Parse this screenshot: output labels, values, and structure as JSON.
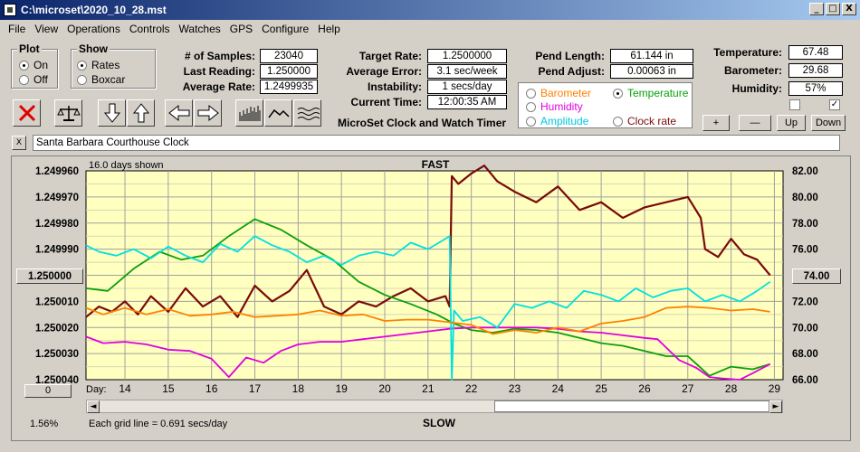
{
  "window": {
    "title": "C:\\microset\\2020_10_28.mst",
    "min": "_",
    "max": "□",
    "close": "X"
  },
  "menu": [
    "File",
    "View",
    "Operations",
    "Controls",
    "Watches",
    "GPS",
    "Configure",
    "Help"
  ],
  "plot": {
    "title": "Plot",
    "on": "On",
    "off": "Off",
    "selected": "On"
  },
  "show": {
    "title": "Show",
    "rates": "Rates",
    "boxcar": "Boxcar",
    "selected": "Rates"
  },
  "stats": {
    "samples_label": "# of Samples:",
    "samples": "23040",
    "last_label": "Last Reading:",
    "last": "1.250000",
    "avg_label": "Average Rate:",
    "avg": "1.2499935"
  },
  "rates": {
    "target_label": "Target Rate:",
    "target": "1.2500000",
    "error_label": "Average Error:",
    "error": "3.1 sec/week",
    "instab_label": "Instability:",
    "instab": "1 secs/day",
    "time_label": "Current Time:",
    "time": "12:00:35 AM"
  },
  "app_name": "MicroSet Clock and Watch Timer",
  "pend": {
    "length_label": "Pend Length:",
    "length": "61.144 in",
    "adjust_label": "Pend Adjust:",
    "adjust": "0.00063 in"
  },
  "sensor_options": {
    "barometer": "Barometer",
    "temperature": "Temperature",
    "humidity": "Humidity",
    "amplitude": "Amplitude",
    "clock_rate": "Clock rate",
    "selected": "Temperature"
  },
  "env": {
    "temp_label": "Temperature:",
    "temp": "67.48",
    "baro_label": "Barometer:",
    "baro": "29.68",
    "hum_label": "Humidity:",
    "hum": "57%"
  },
  "adjust_buttons": {
    "plus": "+",
    "minus": "—",
    "up": "Up",
    "down": "Down"
  },
  "checkbox_right_checked": "✓",
  "clock_name": "Santa Barbara Courthouse Clock",
  "clear_button": "X",
  "chart_data": {
    "type": "line",
    "top_label": "FAST",
    "bottom_label": "SLOW",
    "days_shown": "16.0 days shown",
    "grid_note": "Each grid line = 0.691 secs/day",
    "left_button": "1.250000",
    "right_button": "74.00",
    "zero_button": "0",
    "percent": "1.56%",
    "day_label": "Day:",
    "x_ticks": [
      "14",
      "15",
      "16",
      "17",
      "18",
      "19",
      "20",
      "21",
      "22",
      "23",
      "24",
      "25",
      "26",
      "27",
      "28",
      "29"
    ],
    "y_left_ticks": [
      "1.249960",
      "1.249970",
      "1.249980",
      "1.249990",
      "1.250000",
      "1.250010",
      "1.250020",
      "1.250030",
      "1.250040"
    ],
    "y_right_ticks": [
      "82.00",
      "80.00",
      "78.00",
      "76.00",
      "74.00",
      "72.00",
      "70.00",
      "68.00",
      "66.00"
    ],
    "x_range": [
      13.1,
      29.2
    ],
    "y_left_range": [
      1.24996,
      1.25004
    ],
    "y_right_range": [
      66,
      82
    ],
    "colors": {
      "rate": "#7a0a0a",
      "temperature": "#0aa00a",
      "humidity": "#e000e0",
      "amplitude": "#00e0e0",
      "barometer": "#ff8000",
      "plot_bg": "#ffffc0",
      "grid": "#a0a0a0"
    },
    "series": [
      {
        "key": "rate",
        "axis": "left",
        "x": [
          13.1,
          13.4,
          13.7,
          14.0,
          14.3,
          14.6,
          15.0,
          15.4,
          15.8,
          16.2,
          16.6,
          17.0,
          17.4,
          17.8,
          18.2,
          18.6,
          19.0,
          19.4,
          19.8,
          20.2,
          20.6,
          21.0,
          21.4,
          21.5,
          21.55,
          21.7,
          22.0,
          22.3,
          22.6,
          23.0,
          23.5,
          24.0,
          24.5,
          25.0,
          25.5,
          26.0,
          26.5,
          27.0,
          27.3,
          27.4,
          27.7,
          28.0,
          28.3,
          28.6,
          28.9
        ],
        "values": [
          1.250016,
          1.250012,
          1.250014,
          1.25001,
          1.250015,
          1.250008,
          1.250014,
          1.250005,
          1.250012,
          1.250008,
          1.250016,
          1.250004,
          1.25001,
          1.250006,
          1.249998,
          1.250012,
          1.250015,
          1.25001,
          1.250012,
          1.250008,
          1.250005,
          1.25001,
          1.250008,
          1.250012,
          1.249962,
          1.249965,
          1.249961,
          1.249958,
          1.249964,
          1.249968,
          1.249972,
          1.249966,
          1.249975,
          1.249972,
          1.249978,
          1.249974,
          1.249972,
          1.24997,
          1.249978,
          1.24999,
          1.249993,
          1.249986,
          1.249992,
          1.249994,
          1.25
        ]
      },
      {
        "key": "temperature",
        "axis": "right",
        "x": [
          13.1,
          13.6,
          14.2,
          14.8,
          15.3,
          15.8,
          16.4,
          17.0,
          17.6,
          18.2,
          18.8,
          19.4,
          20.0,
          20.6,
          21.2,
          21.6,
          22.0,
          22.5,
          23.0,
          23.5,
          24.0,
          24.5,
          25.0,
          25.5,
          26.0,
          26.5,
          27.0,
          27.5,
          28.0,
          28.5,
          28.9
        ],
        "values": [
          73.0,
          72.8,
          74.5,
          75.8,
          75.2,
          75.5,
          77.0,
          78.3,
          77.5,
          76.3,
          75.2,
          73.5,
          72.5,
          71.8,
          71.0,
          70.3,
          69.8,
          69.6,
          69.9,
          69.8,
          69.6,
          69.2,
          68.8,
          68.6,
          68.2,
          67.8,
          67.8,
          66.3,
          67.0,
          66.8,
          67.2
        ]
      },
      {
        "key": "humidity",
        "axis": "right",
        "x": [
          13.1,
          13.5,
          14.0,
          14.5,
          15.0,
          15.5,
          16.0,
          16.4,
          16.8,
          17.2,
          17.6,
          18.0,
          18.5,
          19.0,
          19.5,
          20.0,
          20.5,
          21.0,
          21.5,
          22.0,
          22.5,
          23.0,
          23.5,
          24.0,
          24.5,
          25.0,
          25.5,
          26.0,
          26.3,
          26.8,
          27.2,
          27.5,
          27.8,
          28.2,
          28.5,
          28.9
        ],
        "values": [
          69.3,
          68.8,
          68.9,
          68.7,
          68.3,
          68.2,
          67.6,
          66.2,
          67.7,
          67.3,
          68.2,
          68.7,
          68.9,
          68.9,
          69.1,
          69.3,
          69.5,
          69.7,
          69.9,
          70.0,
          70.0,
          70.0,
          70.0,
          69.9,
          69.7,
          69.6,
          69.4,
          69.2,
          69.1,
          67.5,
          66.9,
          66.2,
          66.1,
          66.0,
          66.5,
          67.2
        ]
      },
      {
        "key": "amplitude",
        "axis": "right",
        "x": [
          13.1,
          13.4,
          13.8,
          14.2,
          14.6,
          15.0,
          15.4,
          15.8,
          16.2,
          16.6,
          17.0,
          17.4,
          17.8,
          18.2,
          18.6,
          19.0,
          19.4,
          19.8,
          20.2,
          20.6,
          21.0,
          21.4,
          21.5,
          21.55,
          21.6,
          21.8,
          22.2,
          22.6,
          23.0,
          23.4,
          23.8,
          24.2,
          24.6,
          25.0,
          25.4,
          25.8,
          26.2,
          26.6,
          27.0,
          27.4,
          27.8,
          28.2,
          28.6,
          28.9
        ],
        "values": [
          76.3,
          75.8,
          75.5,
          76.0,
          75.3,
          76.2,
          75.5,
          75.0,
          76.4,
          75.8,
          77.0,
          76.3,
          75.8,
          75.0,
          75.5,
          74.8,
          75.5,
          75.8,
          75.5,
          76.5,
          76.0,
          76.8,
          77.0,
          66.0,
          71.3,
          70.5,
          70.8,
          70.0,
          71.8,
          71.5,
          72.0,
          71.5,
          72.8,
          72.5,
          72.0,
          73.0,
          72.3,
          72.8,
          73.0,
          72.0,
          72.5,
          72.0,
          72.8,
          73.5
        ]
      },
      {
        "key": "barometer",
        "axis": "right",
        "x": [
          13.1,
          13.5,
          14.0,
          14.5,
          15.0,
          15.5,
          16.0,
          16.5,
          17.0,
          17.5,
          18.0,
          18.5,
          19.0,
          19.5,
          20.0,
          20.5,
          21.0,
          21.5,
          22.0,
          22.5,
          23.0,
          23.5,
          24.0,
          24.5,
          25.0,
          25.5,
          26.0,
          26.5,
          27.0,
          27.5,
          28.0,
          28.5,
          28.9
        ],
        "values": [
          71.5,
          71.0,
          71.5,
          71.0,
          71.4,
          70.9,
          71.0,
          71.2,
          70.8,
          70.9,
          71.0,
          71.3,
          70.9,
          71.0,
          70.5,
          70.6,
          70.6,
          70.4,
          70.2,
          69.5,
          69.8,
          69.6,
          70.0,
          69.7,
          70.3,
          70.5,
          70.8,
          71.5,
          71.6,
          71.5,
          71.3,
          71.4,
          71.2
        ]
      }
    ]
  }
}
